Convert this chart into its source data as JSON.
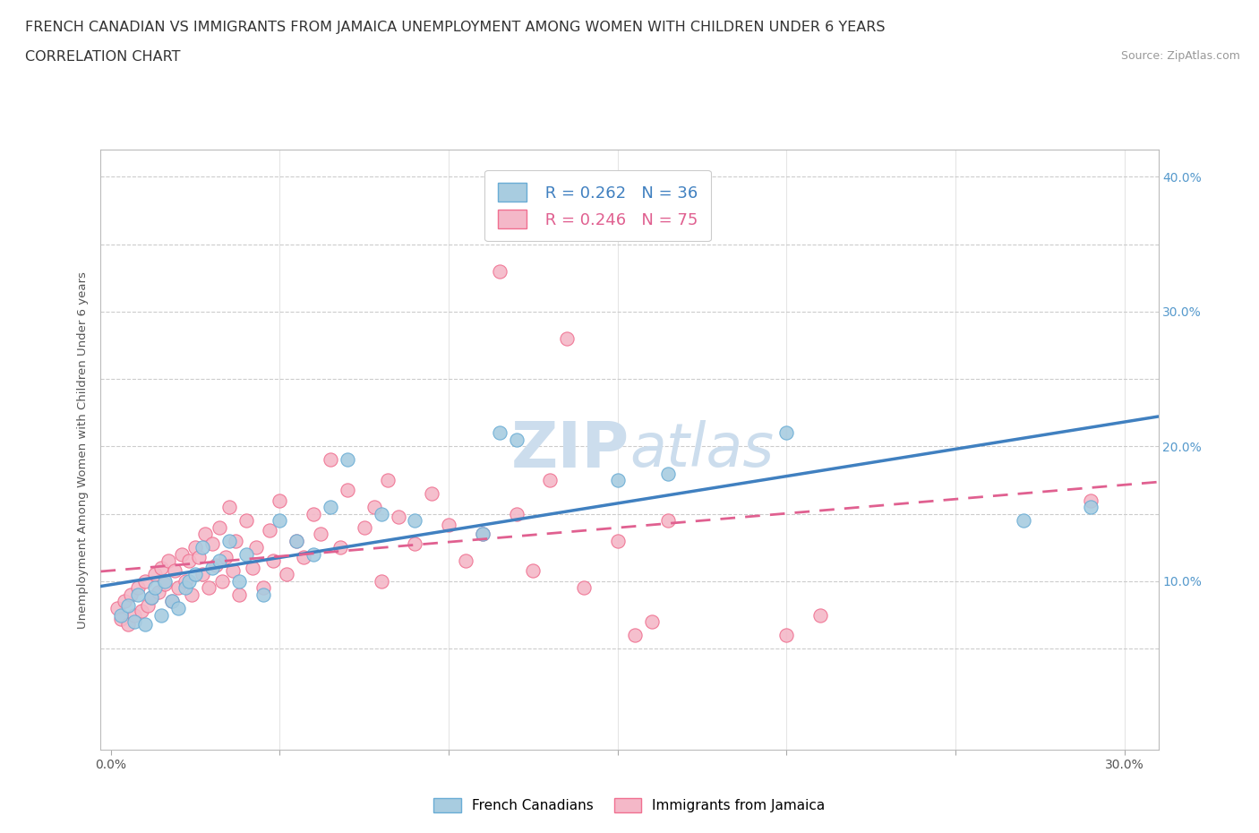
{
  "title_line1": "FRENCH CANADIAN VS IMMIGRANTS FROM JAMAICA UNEMPLOYMENT AMONG WOMEN WITH CHILDREN UNDER 6 YEARS",
  "title_line2": "CORRELATION CHART",
  "source": "Source: ZipAtlas.com",
  "ylabel": "Unemployment Among Women with Children Under 6 years",
  "r1": 0.262,
  "n1": 36,
  "r2": 0.246,
  "n2": 75,
  "blue_color": "#a8cce0",
  "pink_color": "#f4b8c8",
  "blue_edge_color": "#6aadd5",
  "pink_edge_color": "#f07090",
  "blue_line_color": "#4080c0",
  "pink_line_color": "#e06090",
  "legend_label1": "French Canadians",
  "legend_label2": "Immigrants from Jamaica",
  "xlim": [
    -0.003,
    0.31
  ],
  "ylim": [
    -0.025,
    0.42
  ],
  "x_tick_vals": [
    0.0,
    0.05,
    0.1,
    0.15,
    0.2,
    0.25,
    0.3
  ],
  "y_tick_vals": [
    0.0,
    0.05,
    0.1,
    0.15,
    0.2,
    0.25,
    0.3,
    0.35,
    0.4
  ],
  "background_color": "#ffffff",
  "grid_color": "#cccccc",
  "watermark_color": "#ccdded",
  "title_fontsize": 11.5,
  "tick_fontsize": 10,
  "legend_fontsize": 13,
  "blue_scatter": [
    [
      0.003,
      0.075
    ],
    [
      0.005,
      0.082
    ],
    [
      0.007,
      0.07
    ],
    [
      0.008,
      0.09
    ],
    [
      0.01,
      0.068
    ],
    [
      0.012,
      0.088
    ],
    [
      0.013,
      0.095
    ],
    [
      0.015,
      0.075
    ],
    [
      0.016,
      0.1
    ],
    [
      0.018,
      0.085
    ],
    [
      0.02,
      0.08
    ],
    [
      0.022,
      0.095
    ],
    [
      0.023,
      0.1
    ],
    [
      0.025,
      0.105
    ],
    [
      0.027,
      0.125
    ],
    [
      0.03,
      0.11
    ],
    [
      0.032,
      0.115
    ],
    [
      0.035,
      0.13
    ],
    [
      0.038,
      0.1
    ],
    [
      0.04,
      0.12
    ],
    [
      0.045,
      0.09
    ],
    [
      0.05,
      0.145
    ],
    [
      0.055,
      0.13
    ],
    [
      0.06,
      0.12
    ],
    [
      0.065,
      0.155
    ],
    [
      0.07,
      0.19
    ],
    [
      0.08,
      0.15
    ],
    [
      0.09,
      0.145
    ],
    [
      0.11,
      0.135
    ],
    [
      0.115,
      0.21
    ],
    [
      0.12,
      0.205
    ],
    [
      0.15,
      0.175
    ],
    [
      0.165,
      0.18
    ],
    [
      0.2,
      0.21
    ],
    [
      0.27,
      0.145
    ],
    [
      0.29,
      0.155
    ]
  ],
  "pink_scatter": [
    [
      0.002,
      0.08
    ],
    [
      0.003,
      0.072
    ],
    [
      0.004,
      0.085
    ],
    [
      0.005,
      0.068
    ],
    [
      0.006,
      0.09
    ],
    [
      0.007,
      0.075
    ],
    [
      0.008,
      0.095
    ],
    [
      0.009,
      0.078
    ],
    [
      0.01,
      0.1
    ],
    [
      0.011,
      0.082
    ],
    [
      0.012,
      0.088
    ],
    [
      0.013,
      0.105
    ],
    [
      0.014,
      0.092
    ],
    [
      0.015,
      0.11
    ],
    [
      0.016,
      0.098
    ],
    [
      0.017,
      0.115
    ],
    [
      0.018,
      0.085
    ],
    [
      0.019,
      0.108
    ],
    [
      0.02,
      0.095
    ],
    [
      0.021,
      0.12
    ],
    [
      0.022,
      0.1
    ],
    [
      0.023,
      0.115
    ],
    [
      0.024,
      0.09
    ],
    [
      0.025,
      0.125
    ],
    [
      0.026,
      0.118
    ],
    [
      0.027,
      0.105
    ],
    [
      0.028,
      0.135
    ],
    [
      0.029,
      0.095
    ],
    [
      0.03,
      0.128
    ],
    [
      0.031,
      0.112
    ],
    [
      0.032,
      0.14
    ],
    [
      0.033,
      0.1
    ],
    [
      0.034,
      0.118
    ],
    [
      0.035,
      0.155
    ],
    [
      0.036,
      0.108
    ],
    [
      0.037,
      0.13
    ],
    [
      0.038,
      0.09
    ],
    [
      0.04,
      0.145
    ],
    [
      0.042,
      0.11
    ],
    [
      0.043,
      0.125
    ],
    [
      0.045,
      0.095
    ],
    [
      0.047,
      0.138
    ],
    [
      0.048,
      0.115
    ],
    [
      0.05,
      0.16
    ],
    [
      0.052,
      0.105
    ],
    [
      0.055,
      0.13
    ],
    [
      0.057,
      0.118
    ],
    [
      0.06,
      0.15
    ],
    [
      0.062,
      0.135
    ],
    [
      0.065,
      0.19
    ],
    [
      0.068,
      0.125
    ],
    [
      0.07,
      0.168
    ],
    [
      0.075,
      0.14
    ],
    [
      0.078,
      0.155
    ],
    [
      0.08,
      0.1
    ],
    [
      0.082,
      0.175
    ],
    [
      0.085,
      0.148
    ],
    [
      0.09,
      0.128
    ],
    [
      0.095,
      0.165
    ],
    [
      0.1,
      0.142
    ],
    [
      0.105,
      0.115
    ],
    [
      0.11,
      0.135
    ],
    [
      0.115,
      0.33
    ],
    [
      0.12,
      0.15
    ],
    [
      0.125,
      0.108
    ],
    [
      0.13,
      0.175
    ],
    [
      0.135,
      0.28
    ],
    [
      0.14,
      0.095
    ],
    [
      0.15,
      0.13
    ],
    [
      0.155,
      0.06
    ],
    [
      0.16,
      0.07
    ],
    [
      0.165,
      0.145
    ],
    [
      0.2,
      0.06
    ],
    [
      0.21,
      0.075
    ],
    [
      0.29,
      0.16
    ]
  ],
  "trend_blue_start": 0.085,
  "trend_blue_end": 0.17,
  "trend_pink_start": 0.082,
  "trend_pink_end": 0.175
}
